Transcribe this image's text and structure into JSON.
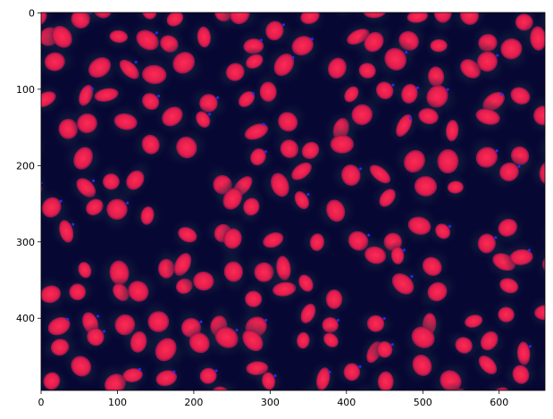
{
  "figure": {
    "type": "image",
    "content": "fluorescence microscopy of cells with red nuclei on dark blue background",
    "x_ticks": [
      "0",
      "100",
      "200",
      "300",
      "400",
      "500",
      "600"
    ],
    "y_ticks": [
      "0",
      "100",
      "200",
      "300",
      "400"
    ],
    "x_range": [
      0,
      660
    ],
    "y_range": [
      495,
      0
    ],
    "colors": {
      "background": "#070733",
      "nucleus": "#e8204e",
      "cytoplasm": "#1d3a3a",
      "membrane_spots": "#2a2aff"
    }
  }
}
